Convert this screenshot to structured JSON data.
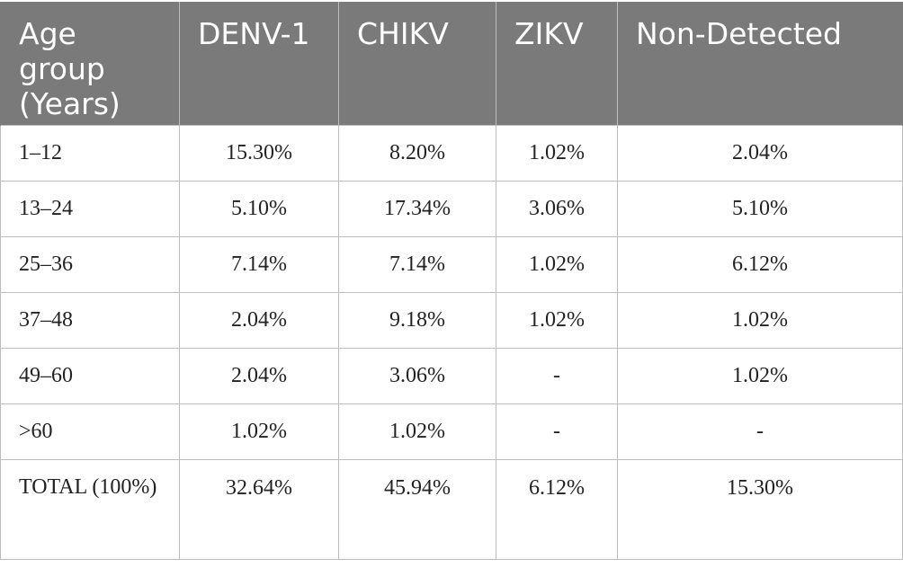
{
  "table": {
    "headers": [
      "Age group (Years)",
      "DENV-1",
      "CHIKV",
      "ZIKV",
      "Non-Detected"
    ],
    "rows": [
      [
        "1–12",
        "15.30%",
        "8.20%",
        "1.02%",
        "2.04%"
      ],
      [
        "13–24",
        "5.10%",
        "17.34%",
        "3.06%",
        "5.10%"
      ],
      [
        "25–36",
        "7.14%",
        "7.14%",
        "1.02%",
        "6.12%"
      ],
      [
        "37–48",
        "2.04%",
        "9.18%",
        "1.02%",
        "1.02%"
      ],
      [
        "49–60",
        "2.04%",
        "3.06%",
        "-",
        "1.02%"
      ],
      [
        ">60",
        "1.02%",
        "1.02%",
        "-",
        "-"
      ],
      [
        "TOTAL (100%)",
        "32.64%",
        "45.94%",
        "6.12%",
        "15.30%"
      ]
    ]
  },
  "colors": {
    "header_background": "#7a7a7a",
    "header_text": "#ffffff",
    "border": "#bdbdbd"
  }
}
